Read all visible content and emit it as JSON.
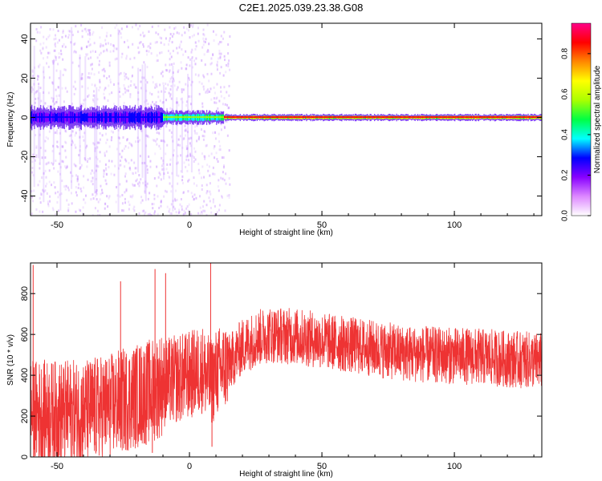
{
  "title": "C2E1.2025.039.23.38.G08",
  "colors": {
    "background": "#ffffff",
    "axis": "#000000",
    "snr_line": "#ee3333",
    "spectrum_low": "#e6ccff",
    "spectrum_mid": "#00ffcc",
    "spectrum_high": "#ff3333",
    "colorbar_stops": [
      "#ffffff",
      "#dd88ff",
      "#8800ff",
      "#0000ff",
      "#00ffff",
      "#00ff44",
      "#aaff00",
      "#ffff00",
      "#ff8800",
      "#ff0000",
      "#ff0088"
    ]
  },
  "chart_data": [
    {
      "type": "heatmap",
      "title": "C2E1.2025.039.23.38.G08",
      "xlabel": "Height of straight line (km)",
      "ylabel": "Frequency (Hz)",
      "xlim": [
        -60,
        133
      ],
      "ylim": [
        -50,
        48
      ],
      "xticks": [
        -50,
        0,
        50,
        100
      ],
      "yticks": [
        -40,
        -20,
        0,
        20,
        40
      ],
      "colorbar": {
        "label": "Normalized spectral amplitude",
        "range": [
          0.0,
          0.95
        ],
        "ticks": [
          0.0,
          0.2,
          0.4,
          0.6,
          0.8
        ]
      },
      "band": {
        "center_hz": 0,
        "segments": [
          {
            "x": [
              -60,
              -10
            ],
            "amplitude": 0.3,
            "spread_hz": 5,
            "noise": "scattered purple, frequent vertical streaks up to ±50 Hz"
          },
          {
            "x": [
              -10,
              13
            ],
            "amplitude": 0.6,
            "spread_hz": 3,
            "noise": "moderate"
          },
          {
            "x": [
              13,
              133
            ],
            "amplitude": 0.9,
            "spread_hz": 1.5,
            "noise": "low"
          }
        ]
      }
    },
    {
      "type": "line",
      "xlabel": "Height of straight line (km)",
      "ylabel": "SNR (10 * v/v)",
      "xlim": [
        -60,
        133
      ],
      "ylim": [
        0,
        950
      ],
      "xticks": [
        -50,
        0,
        50,
        100
      ],
      "yticks": [
        0,
        200,
        400,
        600,
        800
      ],
      "trend": {
        "x": [
          -60,
          -50,
          -40,
          -30,
          -20,
          -15,
          -10,
          -5,
          0,
          5,
          8,
          10,
          15,
          20,
          25,
          30,
          40,
          50,
          60,
          70,
          80,
          90,
          100,
          110,
          120,
          133
        ],
        "y": [
          220,
          215,
          220,
          250,
          300,
          320,
          360,
          380,
          400,
          430,
          360,
          410,
          460,
          540,
          580,
          600,
          590,
          570,
          550,
          530,
          510,
          500,
          495,
          490,
          480,
          470
        ]
      },
      "spikes": [
        {
          "x": -59,
          "y": 940
        },
        {
          "x": -13,
          "y": 920
        },
        {
          "x": -9,
          "y": 900
        },
        {
          "x": 8,
          "y": 950
        },
        {
          "x": 8.5,
          "y": 50
        },
        {
          "x": -14,
          "y": 20
        },
        {
          "x": -26,
          "y": 860
        }
      ]
    }
  ]
}
